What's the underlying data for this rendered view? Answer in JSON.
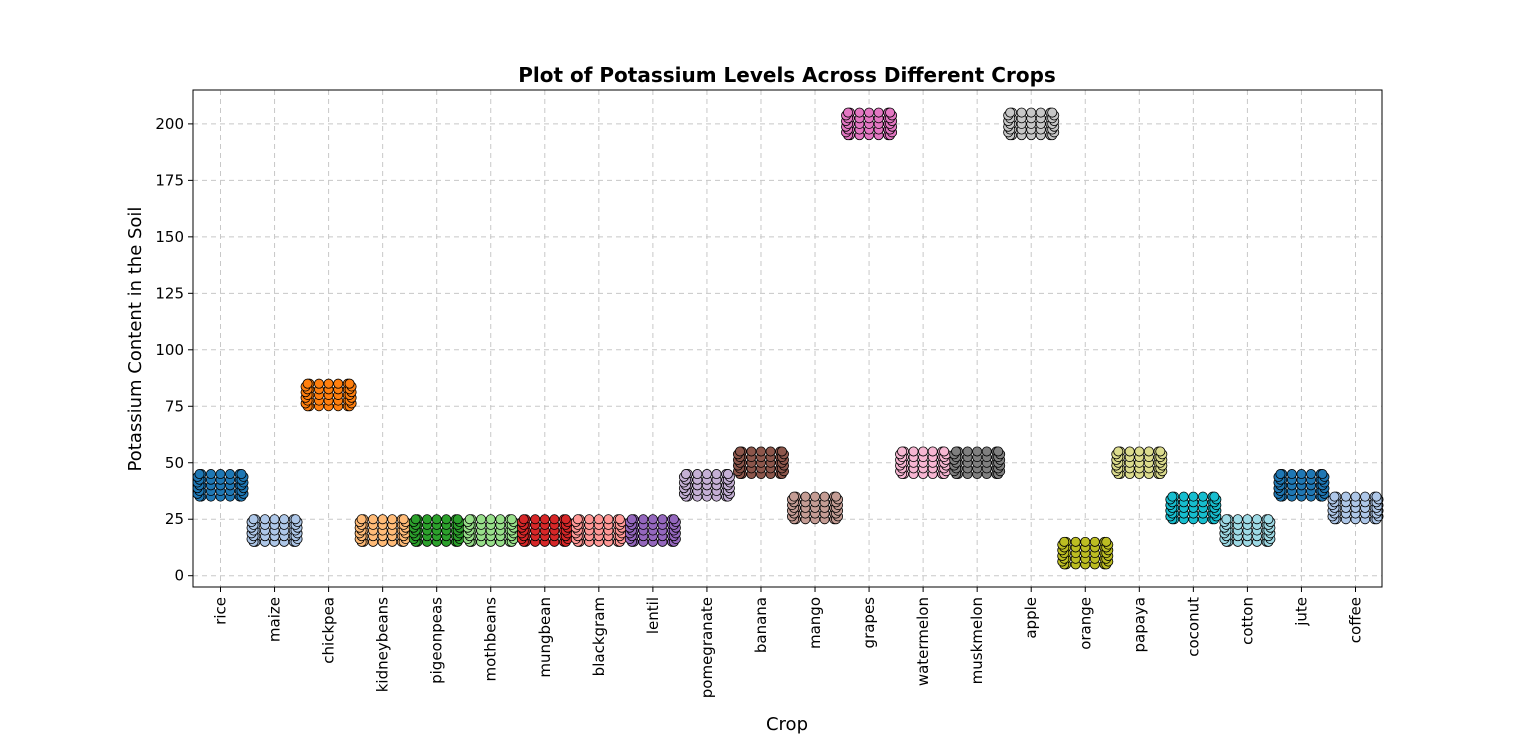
{
  "chart_data": {
    "type": "scatter",
    "subtype": "swarm",
    "title": "Plot of Potassium Levels Across Different Crops",
    "xlabel": "Crop",
    "ylabel": "Potassium Content in the Soil",
    "ylim": [
      -5,
      215
    ],
    "yticks": [
      0,
      25,
      50,
      75,
      100,
      125,
      150,
      175,
      200
    ],
    "grid": true,
    "series": [
      {
        "category": "rice",
        "min": 35,
        "max": 45,
        "color": "#1f77b4"
      },
      {
        "category": "maize",
        "min": 15,
        "max": 25,
        "color": "#aec7e8"
      },
      {
        "category": "chickpea",
        "min": 75,
        "max": 85,
        "color": "#ff7f0e"
      },
      {
        "category": "kidneybeans",
        "min": 15,
        "max": 25,
        "color": "#ffbb78"
      },
      {
        "category": "pigeonpeas",
        "min": 15,
        "max": 25,
        "color": "#2ca02c"
      },
      {
        "category": "mothbeans",
        "min": 15,
        "max": 25,
        "color": "#98df8a"
      },
      {
        "category": "mungbean",
        "min": 15,
        "max": 25,
        "color": "#d62728"
      },
      {
        "category": "blackgram",
        "min": 15,
        "max": 25,
        "color": "#ff9896"
      },
      {
        "category": "lentil",
        "min": 15,
        "max": 25,
        "color": "#9467bd"
      },
      {
        "category": "pomegranate",
        "min": 35,
        "max": 45,
        "color": "#c5b0d5"
      },
      {
        "category": "banana",
        "min": 45,
        "max": 55,
        "color": "#8c564b"
      },
      {
        "category": "mango",
        "min": 25,
        "max": 35,
        "color": "#c49c94"
      },
      {
        "category": "grapes",
        "min": 195,
        "max": 205,
        "color": "#e377c2"
      },
      {
        "category": "watermelon",
        "min": 45,
        "max": 55,
        "color": "#f7b6d2"
      },
      {
        "category": "muskmelon",
        "min": 45,
        "max": 55,
        "color": "#7f7f7f"
      },
      {
        "category": "apple",
        "min": 195,
        "max": 205,
        "color": "#c7c7c7"
      },
      {
        "category": "orange",
        "min": 5,
        "max": 15,
        "color": "#bcbd22"
      },
      {
        "category": "papaya",
        "min": 45,
        "max": 55,
        "color": "#dbdb8d"
      },
      {
        "category": "coconut",
        "min": 25,
        "max": 35,
        "color": "#17becf"
      },
      {
        "category": "cotton",
        "min": 15,
        "max": 25,
        "color": "#9edae5"
      },
      {
        "category": "jute",
        "min": 35,
        "max": 45,
        "color": "#1f77b4"
      },
      {
        "category": "coffee",
        "min": 25,
        "max": 35,
        "color": "#aec7e8"
      }
    ]
  }
}
